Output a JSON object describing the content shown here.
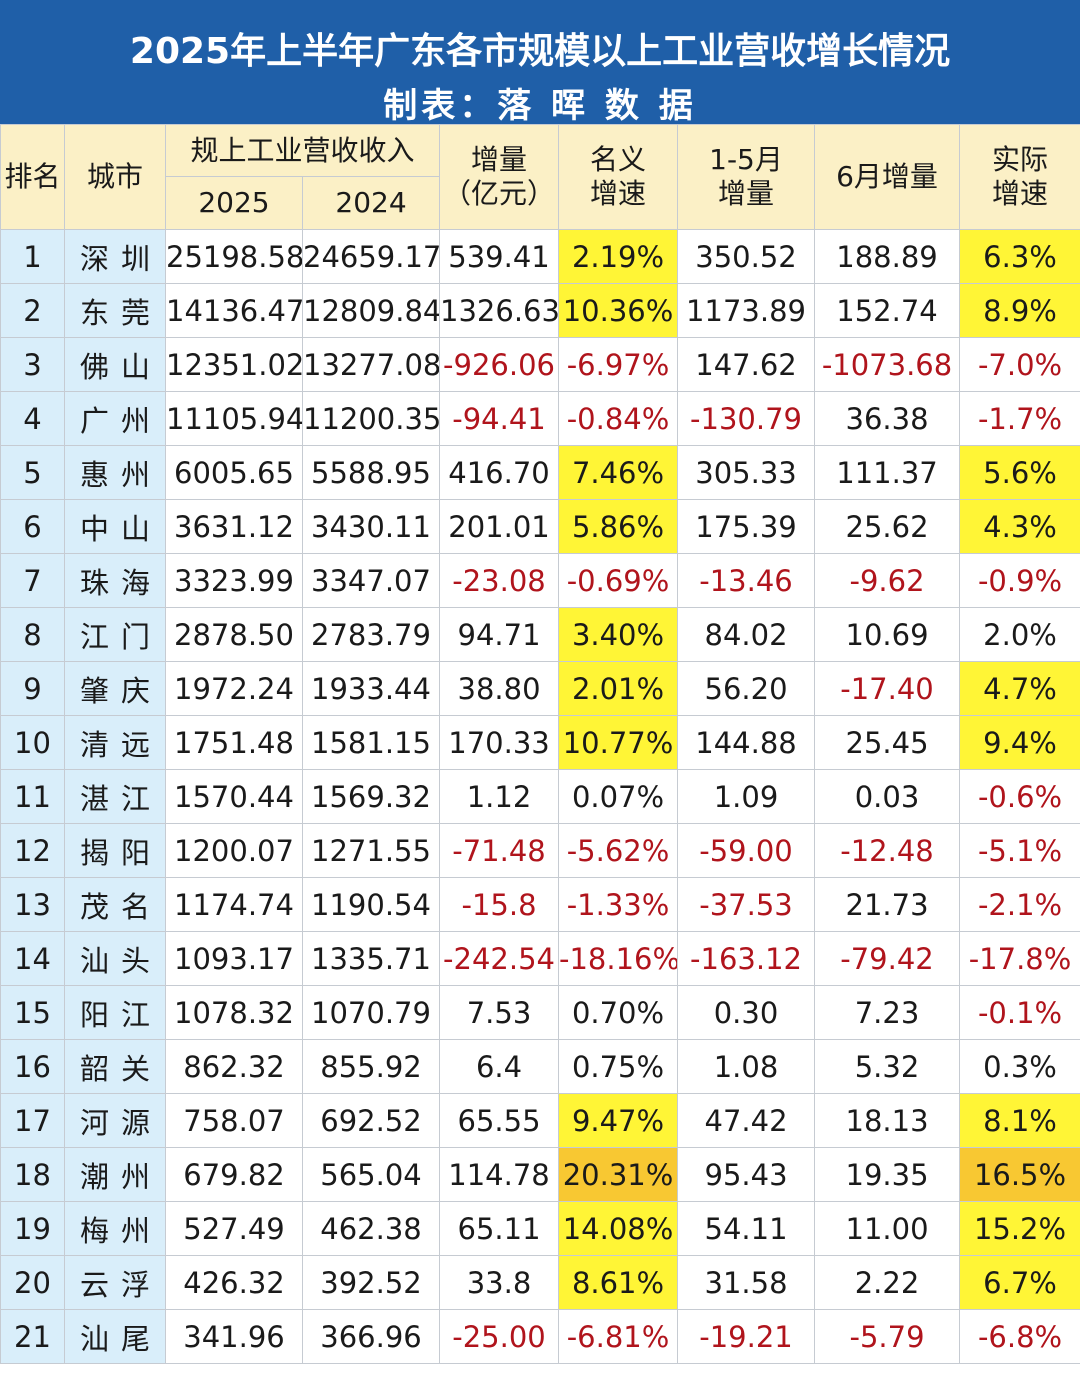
{
  "title": "2025年上半年广东各市规模以上工业营收增长情况",
  "subtitle": "制表：落 晖 数 据",
  "headers": {
    "rank": "排名",
    "city": "城市",
    "revenue_group": "规上工业营收收入",
    "year_2025": "2025",
    "year_2024": "2024",
    "increase_l1": "增量",
    "increase_l2": "（亿元）",
    "nominal_l1": "名义",
    "nominal_l2": "增速",
    "janmay_l1": "1-5月",
    "janmay_l2": "增量",
    "june": "6月增量",
    "real_l1": "实际",
    "real_l2": "增速"
  },
  "colors": {
    "title_bg": "#1f5fa8",
    "header_bg": "#fbf0c6",
    "rank_city_bg": "#d9eefa",
    "highlight_yellow": "#fff536",
    "highlight_orange": "#f8c832",
    "negative_text": "#b0141c"
  },
  "rows": [
    {
      "rank": "1",
      "city": "深圳",
      "v2025": "25198.58",
      "v2024": "24659.17",
      "inc": "539.41",
      "nominal": "2.19%",
      "janmay": "350.52",
      "june": "188.89",
      "real": "6.3%",
      "nominal_hl": "yellow",
      "real_hl": "yellow"
    },
    {
      "rank": "2",
      "city": "东莞",
      "v2025": "14136.47",
      "v2024": "12809.84",
      "inc": "1326.63",
      "nominal": "10.36%",
      "janmay": "1173.89",
      "june": "152.74",
      "real": "8.9%",
      "nominal_hl": "yellow",
      "real_hl": "yellow"
    },
    {
      "rank": "3",
      "city": "佛山",
      "v2025": "12351.02",
      "v2024": "13277.08",
      "inc": "-926.06",
      "nominal": "-6.97%",
      "janmay": "147.62",
      "june": "-1073.68",
      "real": "-7.0%",
      "nominal_hl": "",
      "real_hl": ""
    },
    {
      "rank": "4",
      "city": "广州",
      "v2025": "11105.94",
      "v2024": "11200.35",
      "inc": "-94.41",
      "nominal": "-0.84%",
      "janmay": "-130.79",
      "june": "36.38",
      "real": "-1.7%",
      "nominal_hl": "",
      "real_hl": ""
    },
    {
      "rank": "5",
      "city": "惠州",
      "v2025": "6005.65",
      "v2024": "5588.95",
      "inc": "416.70",
      "nominal": "7.46%",
      "janmay": "305.33",
      "june": "111.37",
      "real": "5.6%",
      "nominal_hl": "yellow",
      "real_hl": "yellow"
    },
    {
      "rank": "6",
      "city": "中山",
      "v2025": "3631.12",
      "v2024": "3430.11",
      "inc": "201.01",
      "nominal": "5.86%",
      "janmay": "175.39",
      "june": "25.62",
      "real": "4.3%",
      "nominal_hl": "yellow",
      "real_hl": "yellow"
    },
    {
      "rank": "7",
      "city": "珠海",
      "v2025": "3323.99",
      "v2024": "3347.07",
      "inc": "-23.08",
      "nominal": "-0.69%",
      "janmay": "-13.46",
      "june": "-9.62",
      "real": "-0.9%",
      "nominal_hl": "",
      "real_hl": ""
    },
    {
      "rank": "8",
      "city": "江门",
      "v2025": "2878.50",
      "v2024": "2783.79",
      "inc": "94.71",
      "nominal": "3.40%",
      "janmay": "84.02",
      "june": "10.69",
      "real": "2.0%",
      "nominal_hl": "yellow",
      "real_hl": ""
    },
    {
      "rank": "9",
      "city": "肇庆",
      "v2025": "1972.24",
      "v2024": "1933.44",
      "inc": "38.80",
      "nominal": "2.01%",
      "janmay": "56.20",
      "june": "-17.40",
      "real": "4.7%",
      "nominal_hl": "yellow",
      "real_hl": "yellow"
    },
    {
      "rank": "10",
      "city": "清远",
      "v2025": "1751.48",
      "v2024": "1581.15",
      "inc": "170.33",
      "nominal": "10.77%",
      "janmay": "144.88",
      "june": "25.45",
      "real": "9.4%",
      "nominal_hl": "yellow",
      "real_hl": "yellow"
    },
    {
      "rank": "11",
      "city": "湛江",
      "v2025": "1570.44",
      "v2024": "1569.32",
      "inc": "1.12",
      "nominal": "0.07%",
      "janmay": "1.09",
      "june": "0.03",
      "real": "-0.6%",
      "nominal_hl": "",
      "real_hl": ""
    },
    {
      "rank": "12",
      "city": "揭阳",
      "v2025": "1200.07",
      "v2024": "1271.55",
      "inc": "-71.48",
      "nominal": "-5.62%",
      "janmay": "-59.00",
      "june": "-12.48",
      "real": "-5.1%",
      "nominal_hl": "",
      "real_hl": ""
    },
    {
      "rank": "13",
      "city": "茂名",
      "v2025": "1174.74",
      "v2024": "1190.54",
      "inc": "-15.8",
      "nominal": "-1.33%",
      "janmay": "-37.53",
      "june": "21.73",
      "real": "-2.1%",
      "nominal_hl": "",
      "real_hl": ""
    },
    {
      "rank": "14",
      "city": "汕头",
      "v2025": "1093.17",
      "v2024": "1335.71",
      "inc": "-242.54",
      "nominal": "-18.16%",
      "janmay": "-163.12",
      "june": "-79.42",
      "real": "-17.8%",
      "nominal_hl": "",
      "real_hl": ""
    },
    {
      "rank": "15",
      "city": "阳江",
      "v2025": "1078.32",
      "v2024": "1070.79",
      "inc": "7.53",
      "nominal": "0.70%",
      "janmay": "0.30",
      "june": "7.23",
      "real": "-0.1%",
      "nominal_hl": "",
      "real_hl": ""
    },
    {
      "rank": "16",
      "city": "韶关",
      "v2025": "862.32",
      "v2024": "855.92",
      "inc": "6.4",
      "nominal": "0.75%",
      "janmay": "1.08",
      "june": "5.32",
      "real": "0.3%",
      "nominal_hl": "",
      "real_hl": ""
    },
    {
      "rank": "17",
      "city": "河源",
      "v2025": "758.07",
      "v2024": "692.52",
      "inc": "65.55",
      "nominal": "9.47%",
      "janmay": "47.42",
      "june": "18.13",
      "real": "8.1%",
      "nominal_hl": "yellow",
      "real_hl": "yellow"
    },
    {
      "rank": "18",
      "city": "潮州",
      "v2025": "679.82",
      "v2024": "565.04",
      "inc": "114.78",
      "nominal": "20.31%",
      "janmay": "95.43",
      "june": "19.35",
      "real": "16.5%",
      "nominal_hl": "orange",
      "real_hl": "orange"
    },
    {
      "rank": "19",
      "city": "梅州",
      "v2025": "527.49",
      "v2024": "462.38",
      "inc": "65.11",
      "nominal": "14.08%",
      "janmay": "54.11",
      "june": "11.00",
      "real": "15.2%",
      "nominal_hl": "yellow",
      "real_hl": "yellow"
    },
    {
      "rank": "20",
      "city": "云浮",
      "v2025": "426.32",
      "v2024": "392.52",
      "inc": "33.8",
      "nominal": "8.61%",
      "janmay": "31.58",
      "june": "2.22",
      "real": "6.7%",
      "nominal_hl": "yellow",
      "real_hl": "yellow"
    },
    {
      "rank": "21",
      "city": "汕尾",
      "v2025": "341.96",
      "v2024": "366.96",
      "inc": "-25.00",
      "nominal": "-6.81%",
      "janmay": "-19.21",
      "june": "-5.79",
      "real": "-6.8%",
      "nominal_hl": "",
      "real_hl": ""
    }
  ]
}
